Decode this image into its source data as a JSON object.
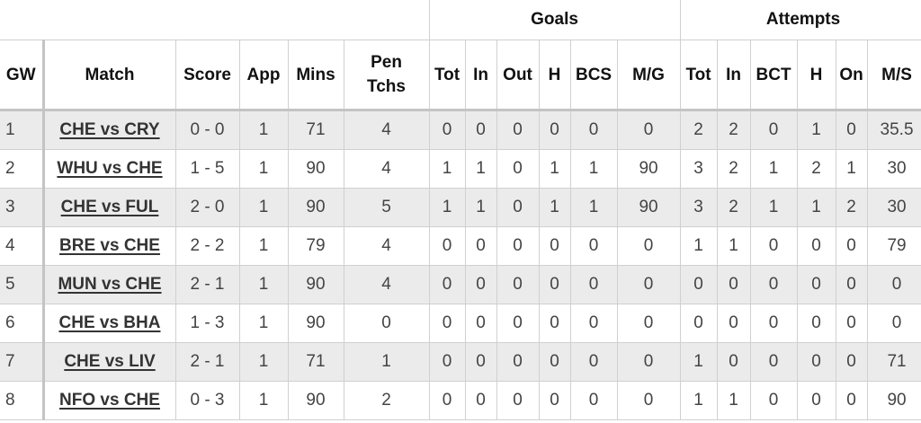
{
  "groups": {
    "goals": "Goals",
    "attempts": "Attempts"
  },
  "columns": [
    "GW",
    "Match",
    "Score",
    "App",
    "Mins",
    "Pen Tchs",
    "Tot",
    "In",
    "Out",
    "H",
    "BCS",
    "M/G",
    "Tot",
    "In",
    "BCT",
    "H",
    "On",
    "M/S"
  ],
  "pen_line1": "Pen",
  "pen_line2": "Tchs",
  "rows": [
    [
      "1",
      "CHE vs CRY",
      "0 - 0",
      "1",
      "71",
      "4",
      "0",
      "0",
      "0",
      "0",
      "0",
      "0",
      "2",
      "2",
      "0",
      "1",
      "0",
      "35.5"
    ],
    [
      "2",
      "WHU vs CHE",
      "1 - 5",
      "1",
      "90",
      "4",
      "1",
      "1",
      "0",
      "1",
      "1",
      "90",
      "3",
      "2",
      "1",
      "2",
      "1",
      "30"
    ],
    [
      "3",
      "CHE vs FUL",
      "2 - 0",
      "1",
      "90",
      "5",
      "1",
      "1",
      "0",
      "1",
      "1",
      "90",
      "3",
      "2",
      "1",
      "1",
      "2",
      "30"
    ],
    [
      "4",
      "BRE vs CHE",
      "2 - 2",
      "1",
      "79",
      "4",
      "0",
      "0",
      "0",
      "0",
      "0",
      "0",
      "1",
      "1",
      "0",
      "0",
      "0",
      "79"
    ],
    [
      "5",
      "MUN vs CHE",
      "2 - 1",
      "1",
      "90",
      "4",
      "0",
      "0",
      "0",
      "0",
      "0",
      "0",
      "0",
      "0",
      "0",
      "0",
      "0",
      "0"
    ],
    [
      "6",
      "CHE vs BHA",
      "1 - 3",
      "1",
      "90",
      "0",
      "0",
      "0",
      "0",
      "0",
      "0",
      "0",
      "0",
      "0",
      "0",
      "0",
      "0",
      "0"
    ],
    [
      "7",
      "CHE vs LIV",
      "2 - 1",
      "1",
      "71",
      "1",
      "0",
      "0",
      "0",
      "0",
      "0",
      "0",
      "1",
      "0",
      "0",
      "0",
      "0",
      "71"
    ],
    [
      "8",
      "NFO vs CHE",
      "0 - 3",
      "1",
      "90",
      "2",
      "0",
      "0",
      "0",
      "0",
      "0",
      "0",
      "1",
      "1",
      "0",
      "0",
      "0",
      "90"
    ]
  ]
}
